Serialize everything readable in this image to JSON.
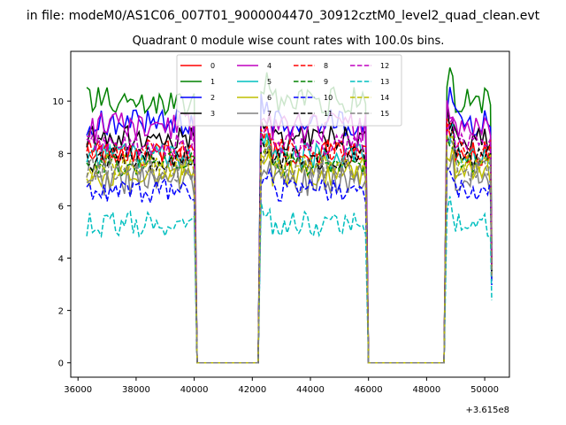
{
  "figure": {
    "suptitle": "in file: modeM0/AS1C06_007T01_9000004470_30912cztM0_level2_quad_clean.evt",
    "offset_label": "+3.615e8"
  },
  "chart_data": {
    "type": "line",
    "title": "Quadrant 0 module wise count rates with 100.0s bins.",
    "xlabel": "",
    "ylabel": "",
    "xlim": [
      35750,
      50850
    ],
    "ylim": [
      -0.55,
      11.9
    ],
    "xticks": [
      36000,
      38000,
      40000,
      42000,
      44000,
      46000,
      48000,
      50000
    ],
    "yticks": [
      0,
      2,
      4,
      6,
      8,
      10
    ],
    "legend_position": "upper center",
    "gaps": [
      [
        40100,
        42200
      ],
      [
        46000,
        48600
      ]
    ],
    "segments": [
      [
        36300,
        40000
      ],
      [
        42300,
        45900
      ],
      [
        48700,
        50200
      ]
    ],
    "series": [
      {
        "name": "0",
        "color": "#ff0000",
        "dashed": false,
        "level": 8.0,
        "noise": 0.3
      },
      {
        "name": "1",
        "color": "#008000",
        "dashed": false,
        "level": 10.0,
        "noise": 0.35
      },
      {
        "name": "2",
        "color": "#0000ff",
        "dashed": false,
        "level": 9.2,
        "noise": 0.35
      },
      {
        "name": "3",
        "color": "#000000",
        "dashed": false,
        "level": 8.6,
        "noise": 0.3
      },
      {
        "name": "4",
        "color": "#bf00bf",
        "dashed": false,
        "level": 9.0,
        "noise": 0.35
      },
      {
        "name": "5",
        "color": "#00bfbf",
        "dashed": false,
        "level": 7.9,
        "noise": 0.3
      },
      {
        "name": "6",
        "color": "#bfbf00",
        "dashed": false,
        "level": 7.2,
        "noise": 0.3
      },
      {
        "name": "7",
        "color": "#808080",
        "dashed": false,
        "level": 7.0,
        "noise": 0.4
      },
      {
        "name": "8",
        "color": "#ff0000",
        "dashed": true,
        "level": 8.1,
        "noise": 0.3
      },
      {
        "name": "9",
        "color": "#008000",
        "dashed": true,
        "level": 7.6,
        "noise": 0.3
      },
      {
        "name": "10",
        "color": "#0000ff",
        "dashed": true,
        "level": 6.6,
        "noise": 0.3
      },
      {
        "name": "11",
        "color": "#000000",
        "dashed": true,
        "level": 7.8,
        "noise": 0.3
      },
      {
        "name": "12",
        "color": "#bf00bf",
        "dashed": true,
        "level": 8.3,
        "noise": 0.3
      },
      {
        "name": "13",
        "color": "#00bfbf",
        "dashed": true,
        "level": 5.3,
        "noise": 0.3
      },
      {
        "name": "14",
        "color": "#bfbf00",
        "dashed": true,
        "level": 7.5,
        "noise": 0.3
      },
      {
        "name": "15",
        "color": "#808080",
        "dashed": true,
        "level": 7.4,
        "noise": 0.3
      }
    ]
  }
}
